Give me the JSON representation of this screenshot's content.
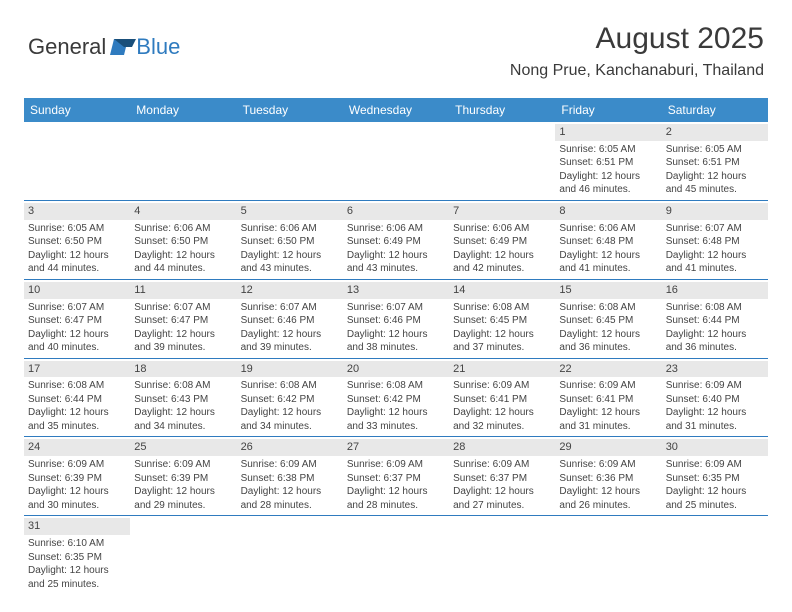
{
  "logo": {
    "part1": "General",
    "part2": "Blue"
  },
  "title": "August 2025",
  "location": "Nong Prue, Kanchanaburi, Thailand",
  "colors": {
    "header_bg": "#3b8bc9",
    "header_text": "#ffffff",
    "border": "#2f7bbf",
    "daynum_bg": "#e8e8e8",
    "text": "#444444"
  },
  "weekdays": [
    "Sunday",
    "Monday",
    "Tuesday",
    "Wednesday",
    "Thursday",
    "Friday",
    "Saturday"
  ],
  "weeks": [
    [
      null,
      null,
      null,
      null,
      null,
      {
        "n": "1",
        "rise": "Sunrise: 6:05 AM",
        "set": "Sunset: 6:51 PM",
        "dl": "Daylight: 12 hours and 46 minutes."
      },
      {
        "n": "2",
        "rise": "Sunrise: 6:05 AM",
        "set": "Sunset: 6:51 PM",
        "dl": "Daylight: 12 hours and 45 minutes."
      }
    ],
    [
      {
        "n": "3",
        "rise": "Sunrise: 6:05 AM",
        "set": "Sunset: 6:50 PM",
        "dl": "Daylight: 12 hours and 44 minutes."
      },
      {
        "n": "4",
        "rise": "Sunrise: 6:06 AM",
        "set": "Sunset: 6:50 PM",
        "dl": "Daylight: 12 hours and 44 minutes."
      },
      {
        "n": "5",
        "rise": "Sunrise: 6:06 AM",
        "set": "Sunset: 6:50 PM",
        "dl": "Daylight: 12 hours and 43 minutes."
      },
      {
        "n": "6",
        "rise": "Sunrise: 6:06 AM",
        "set": "Sunset: 6:49 PM",
        "dl": "Daylight: 12 hours and 43 minutes."
      },
      {
        "n": "7",
        "rise": "Sunrise: 6:06 AM",
        "set": "Sunset: 6:49 PM",
        "dl": "Daylight: 12 hours and 42 minutes."
      },
      {
        "n": "8",
        "rise": "Sunrise: 6:06 AM",
        "set": "Sunset: 6:48 PM",
        "dl": "Daylight: 12 hours and 41 minutes."
      },
      {
        "n": "9",
        "rise": "Sunrise: 6:07 AM",
        "set": "Sunset: 6:48 PM",
        "dl": "Daylight: 12 hours and 41 minutes."
      }
    ],
    [
      {
        "n": "10",
        "rise": "Sunrise: 6:07 AM",
        "set": "Sunset: 6:47 PM",
        "dl": "Daylight: 12 hours and 40 minutes."
      },
      {
        "n": "11",
        "rise": "Sunrise: 6:07 AM",
        "set": "Sunset: 6:47 PM",
        "dl": "Daylight: 12 hours and 39 minutes."
      },
      {
        "n": "12",
        "rise": "Sunrise: 6:07 AM",
        "set": "Sunset: 6:46 PM",
        "dl": "Daylight: 12 hours and 39 minutes."
      },
      {
        "n": "13",
        "rise": "Sunrise: 6:07 AM",
        "set": "Sunset: 6:46 PM",
        "dl": "Daylight: 12 hours and 38 minutes."
      },
      {
        "n": "14",
        "rise": "Sunrise: 6:08 AM",
        "set": "Sunset: 6:45 PM",
        "dl": "Daylight: 12 hours and 37 minutes."
      },
      {
        "n": "15",
        "rise": "Sunrise: 6:08 AM",
        "set": "Sunset: 6:45 PM",
        "dl": "Daylight: 12 hours and 36 minutes."
      },
      {
        "n": "16",
        "rise": "Sunrise: 6:08 AM",
        "set": "Sunset: 6:44 PM",
        "dl": "Daylight: 12 hours and 36 minutes."
      }
    ],
    [
      {
        "n": "17",
        "rise": "Sunrise: 6:08 AM",
        "set": "Sunset: 6:44 PM",
        "dl": "Daylight: 12 hours and 35 minutes."
      },
      {
        "n": "18",
        "rise": "Sunrise: 6:08 AM",
        "set": "Sunset: 6:43 PM",
        "dl": "Daylight: 12 hours and 34 minutes."
      },
      {
        "n": "19",
        "rise": "Sunrise: 6:08 AM",
        "set": "Sunset: 6:42 PM",
        "dl": "Daylight: 12 hours and 34 minutes."
      },
      {
        "n": "20",
        "rise": "Sunrise: 6:08 AM",
        "set": "Sunset: 6:42 PM",
        "dl": "Daylight: 12 hours and 33 minutes."
      },
      {
        "n": "21",
        "rise": "Sunrise: 6:09 AM",
        "set": "Sunset: 6:41 PM",
        "dl": "Daylight: 12 hours and 32 minutes."
      },
      {
        "n": "22",
        "rise": "Sunrise: 6:09 AM",
        "set": "Sunset: 6:41 PM",
        "dl": "Daylight: 12 hours and 31 minutes."
      },
      {
        "n": "23",
        "rise": "Sunrise: 6:09 AM",
        "set": "Sunset: 6:40 PM",
        "dl": "Daylight: 12 hours and 31 minutes."
      }
    ],
    [
      {
        "n": "24",
        "rise": "Sunrise: 6:09 AM",
        "set": "Sunset: 6:39 PM",
        "dl": "Daylight: 12 hours and 30 minutes."
      },
      {
        "n": "25",
        "rise": "Sunrise: 6:09 AM",
        "set": "Sunset: 6:39 PM",
        "dl": "Daylight: 12 hours and 29 minutes."
      },
      {
        "n": "26",
        "rise": "Sunrise: 6:09 AM",
        "set": "Sunset: 6:38 PM",
        "dl": "Daylight: 12 hours and 28 minutes."
      },
      {
        "n": "27",
        "rise": "Sunrise: 6:09 AM",
        "set": "Sunset: 6:37 PM",
        "dl": "Daylight: 12 hours and 28 minutes."
      },
      {
        "n": "28",
        "rise": "Sunrise: 6:09 AM",
        "set": "Sunset: 6:37 PM",
        "dl": "Daylight: 12 hours and 27 minutes."
      },
      {
        "n": "29",
        "rise": "Sunrise: 6:09 AM",
        "set": "Sunset: 6:36 PM",
        "dl": "Daylight: 12 hours and 26 minutes."
      },
      {
        "n": "30",
        "rise": "Sunrise: 6:09 AM",
        "set": "Sunset: 6:35 PM",
        "dl": "Daylight: 12 hours and 25 minutes."
      }
    ],
    [
      {
        "n": "31",
        "rise": "Sunrise: 6:10 AM",
        "set": "Sunset: 6:35 PM",
        "dl": "Daylight: 12 hours and 25 minutes."
      },
      null,
      null,
      null,
      null,
      null,
      null
    ]
  ]
}
